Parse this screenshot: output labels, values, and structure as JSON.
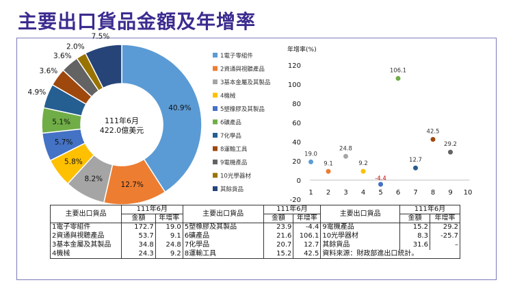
{
  "title": "主要出口貨品金額及年增率",
  "colors": [
    "#5b9bd5",
    "#ed7d31",
    "#a5a5a5",
    "#ffc000",
    "#4472c4",
    "#70ad47",
    "#255e91",
    "#9e480e",
    "#636363",
    "#997300",
    "#264478"
  ],
  "chart_data": [
    {
      "type": "pie",
      "center_label": [
        "111年6月",
        "422.0億美元"
      ],
      "categories": [
        "1電子零組件",
        "2資通與視聽產品",
        "3基本金屬及其製品",
        "4機械",
        "5塑橡膠及其製品",
        "6礦產品",
        "7化學品",
        "8運輸工具",
        "9電機產品",
        "10光學器材",
        "其餘貨品"
      ],
      "values": [
        40.9,
        12.7,
        8.2,
        5.8,
        5.7,
        5.1,
        4.9,
        3.6,
        3.6,
        2.0,
        7.5
      ],
      "value_labels": [
        "40.9%",
        "12.7%",
        "8.2%",
        "5.8%",
        "5.7%",
        "5.1%",
        "4.9%",
        "3.6%",
        "3.6%",
        "2.0%",
        "7.5%"
      ],
      "legend_placement": "right"
    },
    {
      "type": "scatter",
      "ylabel": "年增率(%)",
      "x": [
        1,
        2,
        3,
        4,
        5,
        6,
        7,
        8,
        9
      ],
      "y": [
        19.0,
        9.1,
        24.8,
        9.2,
        -4.4,
        106.1,
        12.7,
        42.5,
        29.2
      ],
      "point_labels": [
        "19.0",
        "9.1",
        "24.8",
        "9.2",
        "-4.4",
        "106.1",
        "12.7",
        "42.5",
        "29.2"
      ],
      "xlim": [
        0,
        10
      ],
      "ylim": [
        -20,
        120
      ],
      "xticks": [
        "1",
        "2",
        "3",
        "4",
        "5",
        "6",
        "7",
        "8",
        "9",
        "10"
      ],
      "yticks": [
        "120",
        "100",
        "80",
        "60",
        "40",
        "20",
        "0",
        "-20"
      ],
      "grid": false
    }
  ],
  "table": {
    "header_item": "主要出口貨品",
    "header_period": "111年6月",
    "header_amount": "金額",
    "header_growth": "年增率",
    "rows": [
      [
        {
          "name": "1電子零組件",
          "amount": "172.7",
          "growth": "19.0"
        },
        {
          "name": "5塑橡膠及其製品",
          "amount": "23.9",
          "growth": "-4.4"
        },
        {
          "name": "9電機產品",
          "amount": "15.2",
          "growth": "29.2"
        }
      ],
      [
        {
          "name": "2資通與視聽產品",
          "amount": "53.7",
          "growth": "9.1"
        },
        {
          "name": "6礦產品",
          "amount": "21.6",
          "growth": "106.1"
        },
        {
          "name": "10光學器材",
          "amount": "8.3",
          "growth": "-25.7"
        }
      ],
      [
        {
          "name": "3基本金屬及其製品",
          "amount": "34.8",
          "growth": "24.8"
        },
        {
          "name": "7化學品",
          "amount": "20.7",
          "growth": "12.7"
        },
        {
          "name": "其餘貨品",
          "amount": "31.6",
          "growth": "–"
        }
      ],
      [
        {
          "name": "4機械",
          "amount": "24.3",
          "growth": "9.2"
        },
        {
          "name": "8運輸工具",
          "amount": "15.2",
          "growth": "42.5"
        }
      ]
    ],
    "source_note": "資料來源：財政部進出口統計。"
  }
}
